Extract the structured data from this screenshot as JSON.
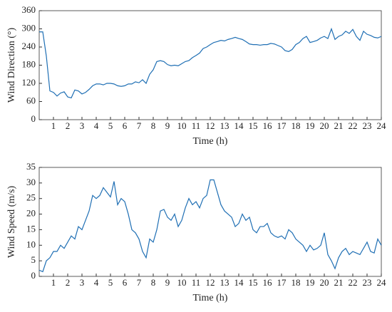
{
  "chart_data": [
    {
      "type": "line",
      "xlabel": "Time (h)",
      "ylabel": "Wind Direction (°)",
      "color": "#1f6fb4",
      "xlim": [
        0,
        24
      ],
      "xticks": [
        1,
        2,
        3,
        4,
        5,
        6,
        7,
        8,
        9,
        10,
        11,
        12,
        13,
        14,
        15,
        16,
        17,
        18,
        19,
        20,
        21,
        22,
        23,
        24
      ],
      "ylim": [
        0,
        360
      ],
      "yticks": [
        0,
        60,
        120,
        180,
        240,
        300,
        360
      ],
      "x": [
        0,
        0.25,
        0.5,
        0.75,
        1,
        1.25,
        1.5,
        1.75,
        2,
        2.25,
        2.5,
        2.75,
        3,
        3.25,
        3.5,
        3.75,
        4,
        4.25,
        4.5,
        4.75,
        5,
        5.25,
        5.5,
        5.75,
        6,
        6.25,
        6.5,
        6.75,
        7,
        7.25,
        7.5,
        7.75,
        8,
        8.25,
        8.5,
        8.75,
        9,
        9.25,
        9.5,
        9.75,
        10,
        10.25,
        10.5,
        10.75,
        11,
        11.25,
        11.5,
        11.75,
        12,
        12.25,
        12.5,
        12.75,
        13,
        13.25,
        13.5,
        13.75,
        14,
        14.25,
        14.5,
        14.75,
        15,
        15.25,
        15.5,
        15.75,
        16,
        16.25,
        16.5,
        16.75,
        17,
        17.25,
        17.5,
        17.75,
        18,
        18.25,
        18.5,
        18.75,
        19,
        19.25,
        19.5,
        19.75,
        20,
        20.25,
        20.5,
        20.75,
        21,
        21.25,
        21.5,
        21.75,
        22,
        22.25,
        22.5,
        22.75,
        23,
        23.25,
        23.5,
        23.75,
        24
      ],
      "values": [
        290,
        290,
        210,
        95,
        90,
        78,
        88,
        92,
        75,
        72,
        98,
        95,
        85,
        90,
        100,
        112,
        118,
        118,
        115,
        120,
        120,
        118,
        112,
        110,
        112,
        118,
        118,
        125,
        122,
        132,
        120,
        150,
        165,
        192,
        195,
        192,
        182,
        178,
        180,
        178,
        185,
        192,
        195,
        205,
        212,
        220,
        235,
        240,
        248,
        255,
        258,
        262,
        260,
        265,
        268,
        272,
        268,
        265,
        258,
        250,
        248,
        248,
        246,
        248,
        248,
        252,
        250,
        245,
        240,
        228,
        225,
        232,
        248,
        255,
        268,
        275,
        255,
        258,
        262,
        270,
        275,
        268,
        300,
        265,
        275,
        280,
        292,
        285,
        298,
        275,
        262,
        292,
        282,
        278,
        272,
        270,
        275
      ]
    },
    {
      "type": "line",
      "xlabel": "Time (h)",
      "ylabel": "Wind Speed (m/s)",
      "color": "#1f6fb4",
      "xlim": [
        0,
        24
      ],
      "xticks": [
        1,
        2,
        3,
        4,
        5,
        6,
        7,
        8,
        9,
        10,
        11,
        12,
        13,
        14,
        15,
        16,
        17,
        18,
        19,
        20,
        21,
        22,
        23,
        24
      ],
      "ylim": [
        0,
        35
      ],
      "yticks": [
        0,
        5,
        10,
        15,
        20,
        25,
        30,
        35
      ],
      "x": [
        0,
        0.25,
        0.5,
        0.75,
        1,
        1.25,
        1.5,
        1.75,
        2,
        2.25,
        2.5,
        2.75,
        3,
        3.25,
        3.5,
        3.75,
        4,
        4.25,
        4.5,
        4.75,
        5,
        5.25,
        5.5,
        5.75,
        6,
        6.25,
        6.5,
        6.75,
        7,
        7.25,
        7.5,
        7.75,
        8,
        8.25,
        8.5,
        8.75,
        9,
        9.25,
        9.5,
        9.75,
        10,
        10.25,
        10.5,
        10.75,
        11,
        11.25,
        11.5,
        11.75,
        12,
        12.25,
        12.5,
        12.75,
        13,
        13.25,
        13.5,
        13.75,
        14,
        14.25,
        14.5,
        14.75,
        15,
        15.25,
        15.5,
        15.75,
        16,
        16.25,
        16.5,
        16.75,
        17,
        17.25,
        17.5,
        17.75,
        18,
        18.25,
        18.5,
        18.75,
        19,
        19.25,
        19.5,
        19.75,
        20,
        20.25,
        20.5,
        20.75,
        21,
        21.25,
        21.5,
        21.75,
        22,
        22.25,
        22.5,
        22.75,
        23,
        23.25,
        23.5,
        23.75,
        24
      ],
      "values": [
        2,
        1.5,
        5,
        6,
        8,
        8,
        10,
        9,
        11,
        13,
        12,
        16,
        15,
        18,
        21,
        26,
        25,
        26,
        28.5,
        27,
        25.5,
        30.5,
        23,
        25,
        24,
        20,
        15,
        14,
        12,
        8,
        6,
        12,
        11,
        15,
        21,
        21.5,
        19,
        18,
        20,
        16,
        18,
        22,
        25,
        23,
        24,
        22,
        25,
        26,
        31,
        31,
        27,
        23,
        21,
        20,
        19,
        16,
        17,
        20,
        18,
        19,
        15,
        14,
        16,
        16,
        17,
        14,
        13,
        12.5,
        13,
        12,
        15,
        14,
        12,
        11,
        10,
        8,
        10,
        8.5,
        9,
        10,
        14,
        7,
        5,
        2.5,
        6,
        8,
        9,
        7,
        8,
        7.5,
        7,
        9,
        11,
        8,
        7.5,
        12,
        10
      ]
    }
  ]
}
